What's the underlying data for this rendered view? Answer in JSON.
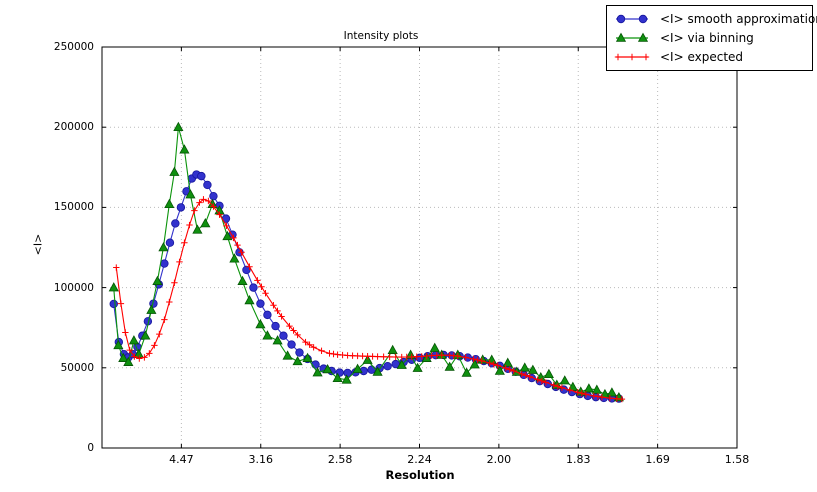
{
  "chart_data": {
    "type": "line",
    "title": "Intensity plots",
    "xlabel": "Resolution",
    "ylabel": "<I>",
    "grid": true,
    "legend_position": "upper right, partly above axes",
    "x_encoding": "point x values are s = 1/d^2; tick labels show resolution d",
    "x_range_s": [
      0,
      0.4
    ],
    "y_range": [
      0,
      250000
    ],
    "x_ticks": [
      {
        "label": "4.47",
        "s": 0.05
      },
      {
        "label": "3.16",
        "s": 0.1
      },
      {
        "label": "2.58",
        "s": 0.15
      },
      {
        "label": "2.24",
        "s": 0.2
      },
      {
        "label": "2.00",
        "s": 0.25
      },
      {
        "label": "1.83",
        "s": 0.3
      },
      {
        "label": "1.69",
        "s": 0.35
      },
      {
        "label": "1.58",
        "s": 0.4
      }
    ],
    "y_ticks": [
      0,
      50000,
      100000,
      150000,
      200000,
      250000
    ],
    "series": [
      {
        "name": "<I> smooth approximation",
        "marker": "circle",
        "color": "#3333cc",
        "marker_fill": "#3232cd",
        "marker_edge": "#16169c",
        "points": [
          [
            0.0074,
            89800
          ],
          [
            0.0106,
            66000
          ],
          [
            0.0138,
            58500
          ],
          [
            0.0166,
            56500
          ],
          [
            0.0194,
            58500
          ],
          [
            0.0223,
            63000
          ],
          [
            0.0254,
            70000
          ],
          [
            0.0289,
            79000
          ],
          [
            0.0324,
            90000
          ],
          [
            0.0358,
            102000
          ],
          [
            0.0393,
            115000
          ],
          [
            0.0428,
            128000
          ],
          [
            0.0462,
            140000
          ],
          [
            0.0497,
            150000
          ],
          [
            0.0532,
            160000
          ],
          [
            0.0566,
            168000
          ],
          [
            0.0595,
            170500
          ],
          [
            0.0626,
            169500
          ],
          [
            0.0664,
            164000
          ],
          [
            0.0702,
            157000
          ],
          [
            0.074,
            151000
          ],
          [
            0.0781,
            143000
          ],
          [
            0.0822,
            133000
          ],
          [
            0.0866,
            122000
          ],
          [
            0.091,
            111000
          ],
          [
            0.0954,
            100000
          ],
          [
            0.0998,
            90000
          ],
          [
            0.1042,
            83000
          ],
          [
            0.1093,
            76000
          ],
          [
            0.1143,
            70000
          ],
          [
            0.1194,
            64500
          ],
          [
            0.1244,
            59500
          ],
          [
            0.1295,
            55500
          ],
          [
            0.1345,
            52000
          ],
          [
            0.1396,
            49500
          ],
          [
            0.1446,
            48000
          ],
          [
            0.1497,
            47000
          ],
          [
            0.1547,
            46800
          ],
          [
            0.1597,
            47200
          ],
          [
            0.1648,
            48000
          ],
          [
            0.1698,
            48800
          ],
          [
            0.1749,
            49800
          ],
          [
            0.1799,
            51000
          ],
          [
            0.185,
            52300
          ],
          [
            0.19,
            53600
          ],
          [
            0.1951,
            55000
          ],
          [
            0.2001,
            56200
          ],
          [
            0.2051,
            57200
          ],
          [
            0.2102,
            57900
          ],
          [
            0.2152,
            58000
          ],
          [
            0.2203,
            57700
          ],
          [
            0.2253,
            57200
          ],
          [
            0.2304,
            56400
          ],
          [
            0.2354,
            55400
          ],
          [
            0.2405,
            54200
          ],
          [
            0.2455,
            52800
          ],
          [
            0.2506,
            51200
          ],
          [
            0.2556,
            49400
          ],
          [
            0.2606,
            47600
          ],
          [
            0.2657,
            45600
          ],
          [
            0.2707,
            43600
          ],
          [
            0.2758,
            41700
          ],
          [
            0.2808,
            39900
          ],
          [
            0.2859,
            38100
          ],
          [
            0.2909,
            36400
          ],
          [
            0.296,
            34900
          ],
          [
            0.301,
            33600
          ],
          [
            0.306,
            32500
          ],
          [
            0.3111,
            31700
          ],
          [
            0.3161,
            31200
          ],
          [
            0.3212,
            30900
          ],
          [
            0.3256,
            30800
          ]
        ]
      },
      {
        "name": "<I> via binning",
        "marker": "triangle",
        "color": "#0a930a",
        "marker_fill": "#0f900f",
        "marker_edge": "#055505",
        "points": [
          [
            0.0074,
            100000
          ],
          [
            0.0103,
            64000
          ],
          [
            0.0134,
            56000
          ],
          [
            0.0166,
            53500
          ],
          [
            0.0201,
            67000
          ],
          [
            0.0232,
            58500
          ],
          [
            0.0273,
            70000
          ],
          [
            0.0311,
            86000
          ],
          [
            0.0349,
            104000
          ],
          [
            0.0387,
            125000
          ],
          [
            0.0424,
            152000
          ],
          [
            0.0456,
            172000
          ],
          [
            0.0481,
            200000
          ],
          [
            0.0519,
            186000
          ],
          [
            0.0557,
            158000
          ],
          [
            0.0601,
            136000
          ],
          [
            0.0651,
            140000
          ],
          [
            0.0696,
            152000
          ],
          [
            0.074,
            148000
          ],
          [
            0.079,
            132000
          ],
          [
            0.0834,
            118000
          ],
          [
            0.0885,
            104000
          ],
          [
            0.0929,
            92000
          ],
          [
            0.0998,
            77000
          ],
          [
            0.1042,
            70000
          ],
          [
            0.1106,
            67000
          ],
          [
            0.1169,
            57500
          ],
          [
            0.1232,
            54000
          ],
          [
            0.1295,
            56000
          ],
          [
            0.1358,
            47000
          ],
          [
            0.1421,
            49000
          ],
          [
            0.1484,
            43500
          ],
          [
            0.1541,
            42500
          ],
          [
            0.161,
            49200
          ],
          [
            0.1673,
            54800
          ],
          [
            0.1736,
            47400
          ],
          [
            0.1831,
            61000
          ],
          [
            0.1888,
            51700
          ],
          [
            0.1944,
            58000
          ],
          [
            0.1988,
            49800
          ],
          [
            0.2045,
            56000
          ],
          [
            0.2096,
            62300
          ],
          [
            0.214,
            58000
          ],
          [
            0.219,
            50500
          ],
          [
            0.2241,
            58000
          ],
          [
            0.2297,
            46800
          ],
          [
            0.2348,
            52000
          ],
          [
            0.2398,
            55000
          ],
          [
            0.2455,
            54900
          ],
          [
            0.2506,
            48000
          ],
          [
            0.2556,
            53000
          ],
          [
            0.2613,
            47400
          ],
          [
            0.2663,
            50000
          ],
          [
            0.2714,
            48600
          ],
          [
            0.2764,
            44000
          ],
          [
            0.2815,
            46000
          ],
          [
            0.2865,
            39300
          ],
          [
            0.2915,
            42000
          ],
          [
            0.2966,
            38000
          ],
          [
            0.3016,
            35000
          ],
          [
            0.3067,
            37000
          ],
          [
            0.3117,
            36200
          ],
          [
            0.3168,
            33500
          ],
          [
            0.3212,
            34500
          ],
          [
            0.3256,
            31500
          ]
        ]
      },
      {
        "name": "<I> expected",
        "marker": "plus",
        "color": "#ff0000",
        "marker_fill": "#ff0000",
        "marker_edge": "#ff0000",
        "points": [
          [
            0.009,
            112500
          ],
          [
            0.0119,
            90000
          ],
          [
            0.0147,
            72000
          ],
          [
            0.0175,
            61000
          ],
          [
            0.0204,
            57000
          ],
          [
            0.0235,
            55800
          ],
          [
            0.0267,
            56500
          ],
          [
            0.0298,
            59000
          ],
          [
            0.033,
            64000
          ],
          [
            0.0361,
            71000
          ],
          [
            0.0393,
            80000
          ],
          [
            0.0424,
            91000
          ],
          [
            0.0456,
            103000
          ],
          [
            0.0488,
            116000
          ],
          [
            0.0519,
            128000
          ],
          [
            0.0551,
            139000
          ],
          [
            0.0582,
            148000
          ],
          [
            0.0614,
            153000
          ],
          [
            0.0639,
            155000
          ],
          [
            0.067,
            154000
          ],
          [
            0.0702,
            150500
          ],
          [
            0.074,
            145500
          ],
          [
            0.0784,
            138500
          ],
          [
            0.0828,
            131000
          ],
          [
            0.0879,
            122000
          ],
          [
            0.0929,
            113000
          ],
          [
            0.0979,
            104500
          ],
          [
            0.103,
            96500
          ],
          [
            0.108,
            89000
          ],
          [
            0.1131,
            82000
          ],
          [
            0.1181,
            76000
          ],
          [
            0.1232,
            70500
          ],
          [
            0.1282,
            66000
          ],
          [
            0.1333,
            62800
          ],
          [
            0.1383,
            60600
          ],
          [
            0.1433,
            59000
          ],
          [
            0.1484,
            58200
          ],
          [
            0.1547,
            57700
          ],
          [
            0.161,
            57400
          ],
          [
            0.1673,
            57200
          ],
          [
            0.1736,
            57000
          ],
          [
            0.1812,
            56800
          ],
          [
            0.1888,
            56700
          ],
          [
            0.1951,
            56800
          ],
          [
            0.2014,
            57100
          ],
          [
            0.2077,
            57600
          ],
          [
            0.214,
            57900
          ],
          [
            0.219,
            57800
          ],
          [
            0.2241,
            57300
          ],
          [
            0.2291,
            56500
          ],
          [
            0.2341,
            55500
          ],
          [
            0.2392,
            54300
          ],
          [
            0.2442,
            53000
          ],
          [
            0.2493,
            51500
          ],
          [
            0.2543,
            49800
          ],
          [
            0.2594,
            48000
          ],
          [
            0.2644,
            46200
          ],
          [
            0.2695,
            44400
          ],
          [
            0.2745,
            42600
          ],
          [
            0.2796,
            40900
          ],
          [
            0.2846,
            39200
          ],
          [
            0.2897,
            37600
          ],
          [
            0.2947,
            36100
          ],
          [
            0.2997,
            34700
          ],
          [
            0.3048,
            33500
          ],
          [
            0.3098,
            32500
          ],
          [
            0.3149,
            31700
          ],
          [
            0.3199,
            31100
          ],
          [
            0.3243,
            30700
          ],
          [
            0.3275,
            30500
          ]
        ]
      }
    ]
  }
}
